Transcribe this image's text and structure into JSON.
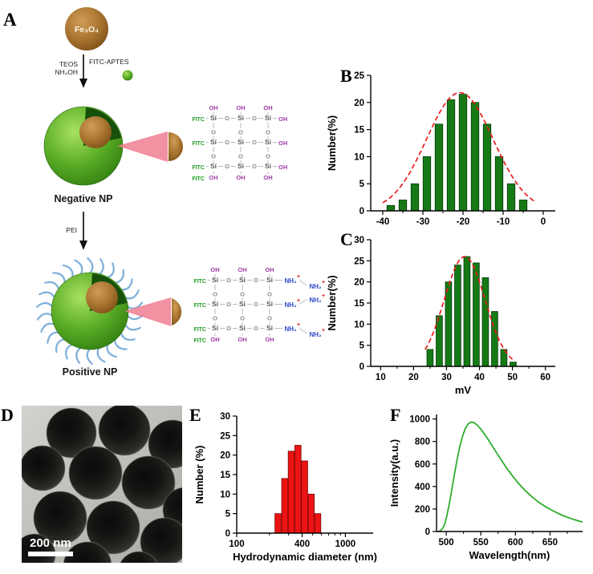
{
  "figure": {
    "panel_labels": {
      "A": "A",
      "B": "B",
      "C": "C",
      "D": "D",
      "E": "E",
      "F": "F"
    }
  },
  "panelA": {
    "core_label": "Fe₃O₄",
    "step1_reagents_line1": "TEOS",
    "step1_reagents_line2": "NH₄OH",
    "step1_reagent_right": "FITC-APTES",
    "negative_np_label": "Negative NP",
    "step2_reagent": "PEI",
    "positive_np_label": "Positive NP",
    "atoms": {
      "si": "Si",
      "o": "O",
      "oh": "OH",
      "fitc": "FITC",
      "amine": "NH₂",
      "plus": "+"
    }
  },
  "panelD": {
    "scale_bar_label": "200 nm"
  },
  "chart_data": [
    {
      "id": "chartB",
      "panel": "B",
      "type": "bar",
      "xlabel": "",
      "ylabel": "Number(%)",
      "xlim": [
        -43,
        3
      ],
      "ylim": [
        0,
        25
      ],
      "xticks": [
        -40,
        -30,
        -20,
        -10,
        0
      ],
      "minor_xticks": [
        -35,
        -25,
        -15,
        -5
      ],
      "yticks": [
        0,
        5,
        10,
        15,
        20,
        25
      ],
      "bar_color": "#157a15",
      "bar_edge": "#06380a",
      "bar_width_units": 1.9,
      "x": [
        -38,
        -35,
        -32,
        -29,
        -26,
        -23,
        -20,
        -17,
        -14,
        -11,
        -8,
        -5
      ],
      "values": [
        1,
        2,
        5,
        10,
        16,
        20.5,
        21.5,
        20,
        16,
        10,
        5,
        2
      ],
      "fit": {
        "type": "gaussian",
        "mean": -20.8,
        "sigma": 8.3,
        "amplitude": 21.8,
        "range": [
          -40,
          -2
        ],
        "color": "#ea1c1c",
        "dashed": true
      }
    },
    {
      "id": "chartC",
      "panel": "C",
      "type": "bar",
      "xlabel": "mV",
      "ylabel": "Number(%)",
      "xlim": [
        7,
        63
      ],
      "ylim": [
        0,
        30
      ],
      "xticks": [
        10,
        20,
        30,
        40,
        50,
        60
      ],
      "minor_xticks": [
        15,
        25,
        35,
        45,
        55
      ],
      "yticks": [
        0,
        5,
        10,
        15,
        20,
        25,
        30
      ],
      "bar_color": "#157a15",
      "bar_edge": "#06380a",
      "bar_width_units": 1.9,
      "x": [
        25,
        27.8,
        30.6,
        33.4,
        36.2,
        39,
        41.8,
        44.6,
        47.4,
        50.2
      ],
      "values": [
        4,
        12,
        20,
        24,
        26,
        24.5,
        21,
        13,
        4,
        1
      ],
      "fit": {
        "type": "gaussian",
        "mean": 35.5,
        "sigma": 6.2,
        "amplitude": 26,
        "range": [
          23.5,
          50
        ],
        "color": "#ea1c1c",
        "dashed": true
      }
    },
    {
      "id": "chartE",
      "panel": "E",
      "type": "bar",
      "xscale": "log",
      "xlabel": "Hydrodynamic diameter (nm)",
      "ylabel": "Number (%)",
      "xlim": [
        100,
        1800
      ],
      "ylim": [
        0,
        30
      ],
      "xticks": [
        100,
        400,
        1000
      ],
      "minor_xticks": [
        200,
        300,
        500,
        600,
        700,
        800,
        900
      ],
      "yticks": [
        0,
        5,
        10,
        15,
        20,
        25,
        30
      ],
      "bar_color": "#ec1313",
      "bar_edge": "#7a0606",
      "bar_factor": 1.068,
      "x": [
        240,
        277,
        318,
        366,
        421,
        484,
        556
      ],
      "values": [
        5,
        14,
        21,
        22.5,
        18.5,
        10,
        5
      ]
    },
    {
      "id": "chartF",
      "panel": "F",
      "type": "line",
      "xlabel": "Wavelength(nm)",
      "ylabel": "Intensity(a.u.)",
      "xlim": [
        486,
        697
      ],
      "ylim": [
        0,
        1040
      ],
      "xticks": [
        500,
        550,
        600,
        650
      ],
      "minor_xticks": [
        525,
        575,
        625,
        675
      ],
      "yticks": [
        0,
        200,
        400,
        600,
        800,
        1000
      ],
      "line_color": "#2fae2f",
      "x": [
        489,
        492,
        495,
        498,
        501,
        504,
        508,
        512,
        516,
        520,
        524,
        528,
        532,
        536,
        540,
        545,
        550,
        556,
        563,
        570,
        578,
        586,
        595,
        604,
        614,
        624,
        634,
        645,
        656,
        667,
        678,
        690,
        697
      ],
      "values": [
        0,
        10,
        30,
        70,
        140,
        230,
        370,
        510,
        650,
        765,
        855,
        920,
        958,
        972,
        968,
        945,
        910,
        860,
        795,
        725,
        650,
        575,
        500,
        430,
        365,
        308,
        258,
        215,
        178,
        146,
        120,
        96,
        85
      ]
    }
  ]
}
